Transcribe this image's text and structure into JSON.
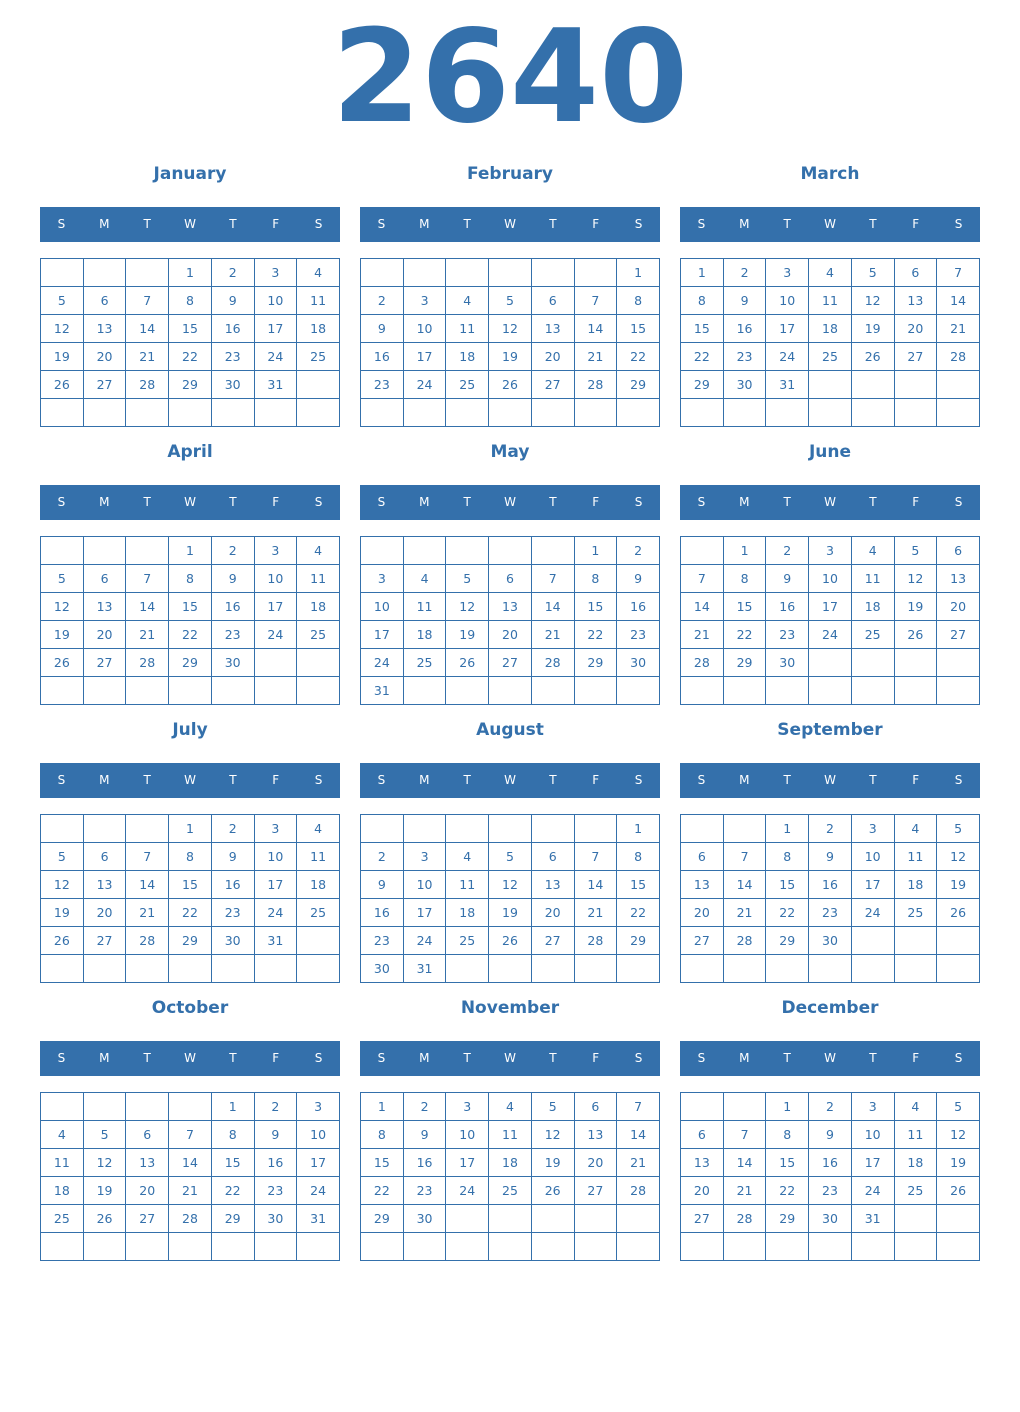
{
  "year": "2640",
  "weekdays": [
    "S",
    "M",
    "T",
    "W",
    "T",
    "F",
    "S"
  ],
  "colors": {
    "accent": "#3470ab",
    "background": "#ffffff"
  },
  "months": [
    {
      "name": "January",
      "weeks": [
        [
          null,
          null,
          null,
          1,
          2,
          3,
          4
        ],
        [
          5,
          6,
          7,
          8,
          9,
          10,
          11
        ],
        [
          12,
          13,
          14,
          15,
          16,
          17,
          18
        ],
        [
          19,
          20,
          21,
          22,
          23,
          24,
          25
        ],
        [
          26,
          27,
          28,
          29,
          30,
          31,
          null
        ],
        [
          null,
          null,
          null,
          null,
          null,
          null,
          null
        ]
      ]
    },
    {
      "name": "February",
      "weeks": [
        [
          null,
          null,
          null,
          null,
          null,
          null,
          1
        ],
        [
          2,
          3,
          4,
          5,
          6,
          7,
          8
        ],
        [
          9,
          10,
          11,
          12,
          13,
          14,
          15
        ],
        [
          16,
          17,
          18,
          19,
          20,
          21,
          22
        ],
        [
          23,
          24,
          25,
          26,
          27,
          28,
          29
        ],
        [
          null,
          null,
          null,
          null,
          null,
          null,
          null
        ]
      ]
    },
    {
      "name": "March",
      "weeks": [
        [
          1,
          2,
          3,
          4,
          5,
          6,
          7
        ],
        [
          8,
          9,
          10,
          11,
          12,
          13,
          14
        ],
        [
          15,
          16,
          17,
          18,
          19,
          20,
          21
        ],
        [
          22,
          23,
          24,
          25,
          26,
          27,
          28
        ],
        [
          29,
          30,
          31,
          null,
          null,
          null,
          null
        ],
        [
          null,
          null,
          null,
          null,
          null,
          null,
          null
        ]
      ]
    },
    {
      "name": "April",
      "weeks": [
        [
          null,
          null,
          null,
          1,
          2,
          3,
          4
        ],
        [
          5,
          6,
          7,
          8,
          9,
          10,
          11
        ],
        [
          12,
          13,
          14,
          15,
          16,
          17,
          18
        ],
        [
          19,
          20,
          21,
          22,
          23,
          24,
          25
        ],
        [
          26,
          27,
          28,
          29,
          30,
          null,
          null
        ],
        [
          null,
          null,
          null,
          null,
          null,
          null,
          null
        ]
      ]
    },
    {
      "name": "May",
      "weeks": [
        [
          null,
          null,
          null,
          null,
          null,
          1,
          2
        ],
        [
          3,
          4,
          5,
          6,
          7,
          8,
          9
        ],
        [
          10,
          11,
          12,
          13,
          14,
          15,
          16
        ],
        [
          17,
          18,
          19,
          20,
          21,
          22,
          23
        ],
        [
          24,
          25,
          26,
          27,
          28,
          29,
          30
        ],
        [
          31,
          null,
          null,
          null,
          null,
          null,
          null
        ]
      ]
    },
    {
      "name": "June",
      "weeks": [
        [
          null,
          1,
          2,
          3,
          4,
          5,
          6
        ],
        [
          7,
          8,
          9,
          10,
          11,
          12,
          13
        ],
        [
          14,
          15,
          16,
          17,
          18,
          19,
          20
        ],
        [
          21,
          22,
          23,
          24,
          25,
          26,
          27
        ],
        [
          28,
          29,
          30,
          null,
          null,
          null,
          null
        ],
        [
          null,
          null,
          null,
          null,
          null,
          null,
          null
        ]
      ]
    },
    {
      "name": "July",
      "weeks": [
        [
          null,
          null,
          null,
          1,
          2,
          3,
          4
        ],
        [
          5,
          6,
          7,
          8,
          9,
          10,
          11
        ],
        [
          12,
          13,
          14,
          15,
          16,
          17,
          18
        ],
        [
          19,
          20,
          21,
          22,
          23,
          24,
          25
        ],
        [
          26,
          27,
          28,
          29,
          30,
          31,
          null
        ],
        [
          null,
          null,
          null,
          null,
          null,
          null,
          null
        ]
      ]
    },
    {
      "name": "August",
      "weeks": [
        [
          null,
          null,
          null,
          null,
          null,
          null,
          1
        ],
        [
          2,
          3,
          4,
          5,
          6,
          7,
          8
        ],
        [
          9,
          10,
          11,
          12,
          13,
          14,
          15
        ],
        [
          16,
          17,
          18,
          19,
          20,
          21,
          22
        ],
        [
          23,
          24,
          25,
          26,
          27,
          28,
          29
        ],
        [
          30,
          31,
          null,
          null,
          null,
          null,
          null
        ]
      ]
    },
    {
      "name": "September",
      "weeks": [
        [
          null,
          null,
          1,
          2,
          3,
          4,
          5
        ],
        [
          6,
          7,
          8,
          9,
          10,
          11,
          12
        ],
        [
          13,
          14,
          15,
          16,
          17,
          18,
          19
        ],
        [
          20,
          21,
          22,
          23,
          24,
          25,
          26
        ],
        [
          27,
          28,
          29,
          30,
          null,
          null,
          null
        ],
        [
          null,
          null,
          null,
          null,
          null,
          null,
          null
        ]
      ]
    },
    {
      "name": "October",
      "weeks": [
        [
          null,
          null,
          null,
          null,
          1,
          2,
          3
        ],
        [
          4,
          5,
          6,
          7,
          8,
          9,
          10
        ],
        [
          11,
          12,
          13,
          14,
          15,
          16,
          17
        ],
        [
          18,
          19,
          20,
          21,
          22,
          23,
          24
        ],
        [
          25,
          26,
          27,
          28,
          29,
          30,
          31
        ],
        [
          null,
          null,
          null,
          null,
          null,
          null,
          null
        ]
      ]
    },
    {
      "name": "November",
      "weeks": [
        [
          1,
          2,
          3,
          4,
          5,
          6,
          7
        ],
        [
          8,
          9,
          10,
          11,
          12,
          13,
          14
        ],
        [
          15,
          16,
          17,
          18,
          19,
          20,
          21
        ],
        [
          22,
          23,
          24,
          25,
          26,
          27,
          28
        ],
        [
          29,
          30,
          null,
          null,
          null,
          null,
          null
        ],
        [
          null,
          null,
          null,
          null,
          null,
          null,
          null
        ]
      ]
    },
    {
      "name": "December",
      "weeks": [
        [
          null,
          null,
          1,
          2,
          3,
          4,
          5
        ],
        [
          6,
          7,
          8,
          9,
          10,
          11,
          12
        ],
        [
          13,
          14,
          15,
          16,
          17,
          18,
          19
        ],
        [
          20,
          21,
          22,
          23,
          24,
          25,
          26
        ],
        [
          27,
          28,
          29,
          30,
          31,
          null,
          null
        ],
        [
          null,
          null,
          null,
          null,
          null,
          null,
          null
        ]
      ]
    }
  ]
}
